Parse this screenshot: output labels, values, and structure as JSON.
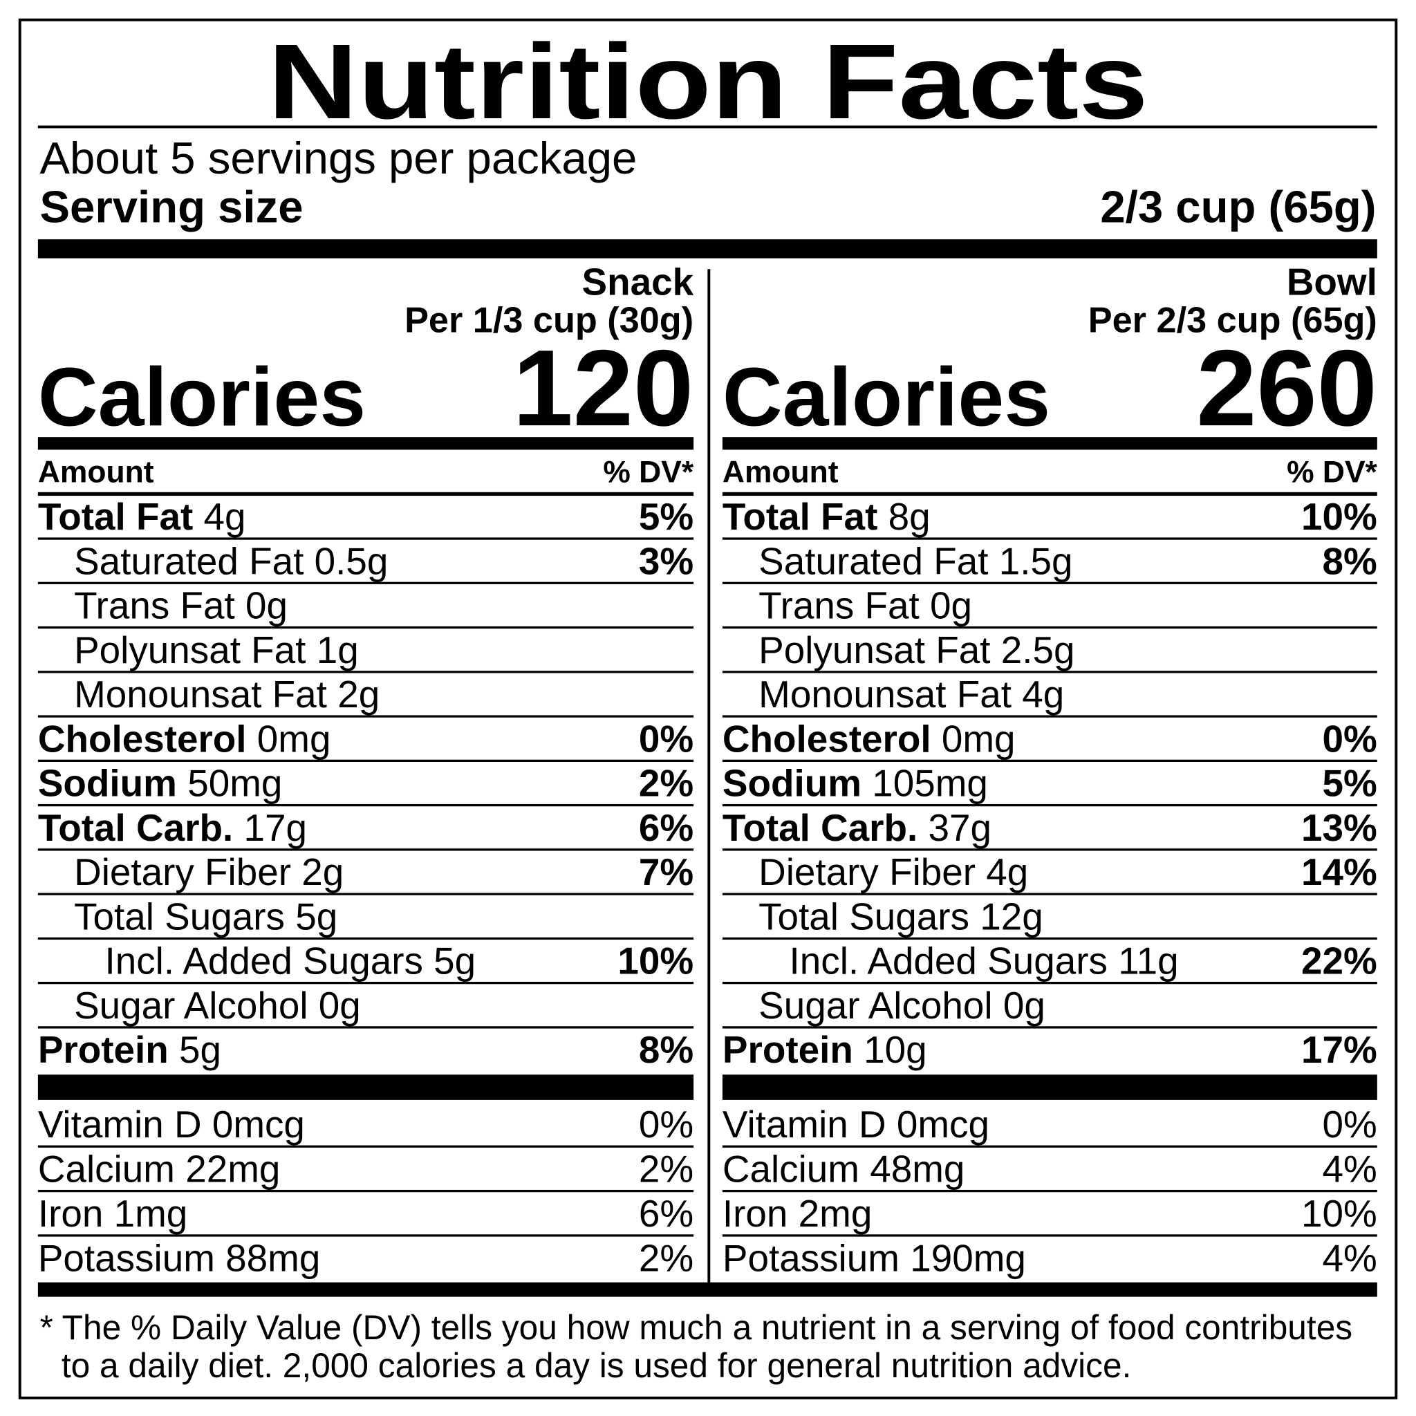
{
  "title": "Nutrition Facts",
  "servings": "About 5 servings per package",
  "serving_size": {
    "label": "Serving size",
    "value": "2/3 cup (65g)"
  },
  "columns": [
    {
      "name": "Snack",
      "per": "Per 1/3 cup (30g)",
      "calories_label": "Calories",
      "calories": 120,
      "amount_header": "Amount",
      "dv_header": "% DV*",
      "nutrients": [
        {
          "name": "Total Fat",
          "amount": "4g",
          "dv": "5%",
          "level": 0
        },
        {
          "name": "Saturated Fat",
          "amount": "0.5g",
          "dv": "3%",
          "level": 1
        },
        {
          "name": "Trans Fat",
          "amount": "0g",
          "level": 1
        },
        {
          "name": "Polyunsat Fat",
          "amount": "1g",
          "level": 1
        },
        {
          "name": "Monounsat Fat",
          "amount": "2g",
          "level": 1
        },
        {
          "name": "Cholesterol",
          "amount": "0mg",
          "dv": "0%",
          "level": 0
        },
        {
          "name": "Sodium",
          "amount": "50mg",
          "dv": "2%",
          "level": 0
        },
        {
          "name": "Total Carb.",
          "amount": "17g",
          "dv": "6%",
          "level": 0
        },
        {
          "name": "Dietary Fiber",
          "amount": "2g",
          "dv": "7%",
          "level": 1
        },
        {
          "name": "Total Sugars",
          "amount": "5g",
          "level": 1
        },
        {
          "name": "Incl. Added Sugars",
          "amount": "5g",
          "dv": "10%",
          "level": 2
        },
        {
          "name": "Sugar Alcohol",
          "amount": "0g",
          "level": 1
        },
        {
          "name": "Protein",
          "amount": "5g",
          "dv": "8%",
          "level": 0
        }
      ],
      "vitamins": [
        {
          "name": "Vitamin D",
          "amount": "0mcg",
          "dv": "0%"
        },
        {
          "name": "Calcium",
          "amount": "22mg",
          "dv": "2%"
        },
        {
          "name": "Iron",
          "amount": "1mg",
          "dv": "6%"
        },
        {
          "name": "Potassium",
          "amount": "88mg",
          "dv": "2%"
        }
      ]
    },
    {
      "name": "Bowl",
      "per": "Per 2/3 cup (65g)",
      "calories_label": "Calories",
      "calories": 260,
      "amount_header": "Amount",
      "dv_header": "% DV*",
      "nutrients": [
        {
          "name": "Total Fat",
          "amount": "8g",
          "dv": "10%",
          "level": 0
        },
        {
          "name": "Saturated Fat",
          "amount": "1.5g",
          "dv": "8%",
          "level": 1
        },
        {
          "name": "Trans Fat",
          "amount": "0g",
          "level": 1
        },
        {
          "name": "Polyunsat Fat",
          "amount": "2.5g",
          "level": 1
        },
        {
          "name": "Monounsat Fat",
          "amount": "4g",
          "level": 1
        },
        {
          "name": "Cholesterol",
          "amount": "0mg",
          "dv": "0%",
          "level": 0
        },
        {
          "name": "Sodium",
          "amount": "105mg",
          "dv": "5%",
          "level": 0
        },
        {
          "name": "Total Carb.",
          "amount": "37g",
          "dv": "13%",
          "level": 0
        },
        {
          "name": "Dietary Fiber",
          "amount": "4g",
          "dv": "14%",
          "level": 1
        },
        {
          "name": "Total Sugars",
          "amount": "12g",
          "level": 1
        },
        {
          "name": "Incl. Added Sugars",
          "amount": "11g",
          "dv": "22%",
          "level": 2
        },
        {
          "name": "Sugar Alcohol",
          "amount": "0g",
          "level": 1
        },
        {
          "name": "Protein",
          "amount": "10g",
          "dv": "17%",
          "level": 0
        }
      ],
      "vitamins": [
        {
          "name": "Vitamin D",
          "amount": "0mcg",
          "dv": "0%"
        },
        {
          "name": "Calcium",
          "amount": "48mg",
          "dv": "4%"
        },
        {
          "name": "Iron",
          "amount": "2mg",
          "dv": "10%"
        },
        {
          "name": "Potassium",
          "amount": "190mg",
          "dv": "4%"
        }
      ]
    }
  ],
  "footnote": [
    "* The % Daily Value (DV) tells you how much a nutrient in a serving of food contributes",
    "to a daily diet. 2,000 calories a day is used for general nutrition advice."
  ]
}
